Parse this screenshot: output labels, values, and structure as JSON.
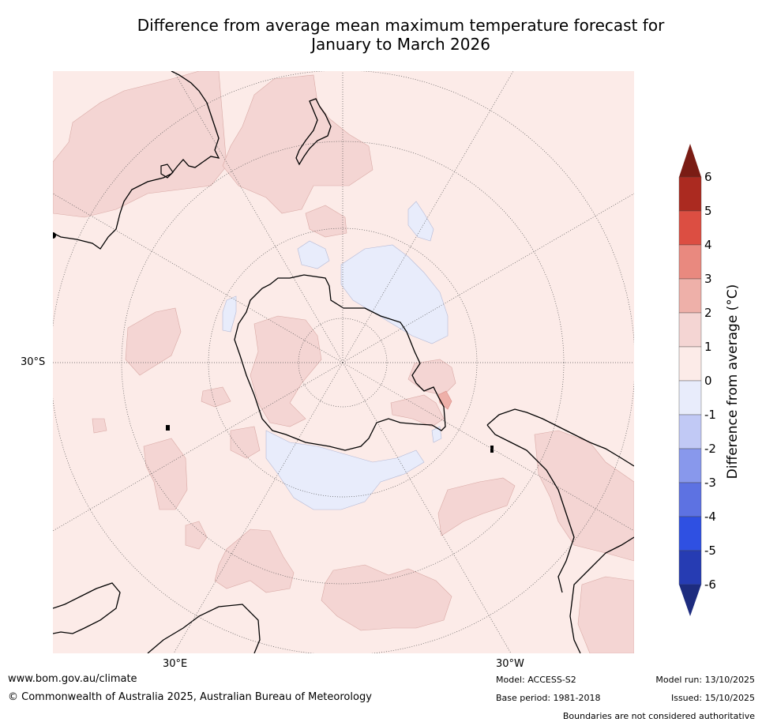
{
  "title": {
    "line1": "Difference from average mean maximum temperature forecast for",
    "line2": "January to March 2026"
  },
  "map": {
    "latitude_label": "30°S",
    "longitude_labels": [
      "30°E",
      "30°W"
    ]
  },
  "colorbar": {
    "label": "Difference from average (°C)",
    "ticks": [
      "6",
      "5",
      "4",
      "3",
      "2",
      "1",
      "0",
      "-1",
      "-2",
      "-3",
      "-4",
      "-5",
      "-6"
    ],
    "colors": {
      "gt6": "#7a1c14",
      "5_to_6": "#ab2a20",
      "4_to_5": "#dc4e42",
      "3_to_4": "#e9897f",
      "2_to_3": "#eeb0a9",
      "1_to_2": "#f4d5d3",
      "0_to_1": "#fcebe8",
      "m1_to_0": "#e8ecfb",
      "m2_to_m1": "#c1c9f5",
      "m3_to_m2": "#8898ec",
      "m4_to_m3": "#5d72e2",
      "m5_to_m4": "#2f50e2",
      "m6_to_m5": "#263cb3",
      "lt_m6": "#1d2c7f"
    }
  },
  "footer": {
    "website": "www.bom.gov.au/climate",
    "copyright": "© Commonwealth of Australia 2025, Australian Bureau of Meteorology",
    "model": "Model: ACCESS-S2",
    "base_period": "Base period: 1981-2018",
    "model_run": "Model run: 13/10/2025",
    "issued": "Issued: 15/10/2025",
    "disclaimer": "Boundaries are not considered authoritative"
  }
}
